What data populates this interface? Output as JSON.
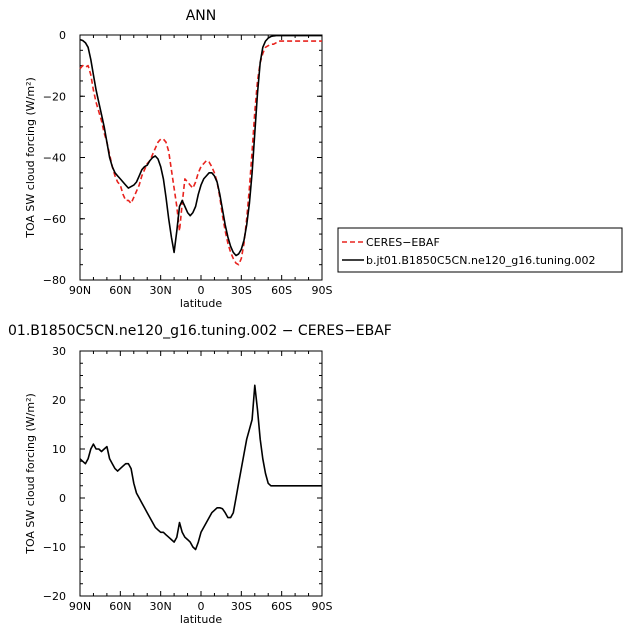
{
  "chart_data": [
    {
      "type": "line",
      "title": "ANN",
      "xlabel": "latitude",
      "ylabel": "TOA SW cloud forcing (W/m²)",
      "xlim": [
        90,
        -90
      ],
      "ylim": [
        -80,
        0
      ],
      "x_ticks": [
        "90N",
        "60N",
        "30N",
        "0",
        "30S",
        "60S",
        "90S"
      ],
      "y_ticks": [
        "0",
        "−20",
        "−40",
        "−60",
        "−80"
      ],
      "legend_position": "right",
      "series": [
        {
          "name": "CERES−EBAF",
          "color": "#e8231e",
          "dash": "dashed",
          "x": [
            90,
            88,
            86,
            84,
            82,
            80,
            78,
            76,
            74,
            72,
            70,
            68,
            66,
            64,
            62,
            60,
            58,
            56,
            54,
            52,
            50,
            48,
            46,
            44,
            42,
            40,
            38,
            36,
            34,
            32,
            30,
            28,
            26,
            24,
            22,
            20,
            18,
            16,
            14,
            12,
            10,
            8,
            6,
            4,
            2,
            0,
            -2,
            -4,
            -6,
            -8,
            -10,
            -12,
            -14,
            -16,
            -18,
            -20,
            -22,
            -24,
            -26,
            -28,
            -30,
            -32,
            -34,
            -36,
            -38,
            -40,
            -42,
            -44,
            -46,
            -48,
            -50,
            -52,
            -54,
            -56,
            -58,
            -60,
            -62,
            -64,
            -66,
            -68,
            -70,
            -72,
            -74,
            -76,
            -78,
            -80,
            -82,
            -84,
            -86,
            -88,
            -90
          ],
          "y": [
            -11,
            -10,
            -10.5,
            -10,
            -13,
            -18,
            -22,
            -25,
            -28,
            -32,
            -35,
            -39,
            -43,
            -46,
            -48,
            -49,
            -52,
            -54,
            -54,
            -55,
            -53,
            -51,
            -49,
            -46,
            -44,
            -42,
            -41,
            -39,
            -37,
            -35,
            -34,
            -34,
            -35,
            -38,
            -44,
            -50,
            -56,
            -64,
            -55,
            -47,
            -48,
            -49,
            -50,
            -48,
            -45,
            -43,
            -42,
            -41,
            -41.5,
            -43,
            -45,
            -48,
            -53,
            -59,
            -64,
            -68,
            -71,
            -73,
            -74.5,
            -75,
            -73,
            -68,
            -60,
            -50,
            -38,
            -25,
            -15,
            -9,
            -6,
            -4,
            -3.5,
            -3,
            -3,
            -2.5,
            -2,
            -2,
            -2,
            -2,
            -2,
            -2,
            -2,
            -2,
            -2,
            -2,
            -2,
            -2,
            -2,
            -2,
            -2,
            -2,
            -2
          ]
        },
        {
          "name": "b.jt01.B1850C5CN.ne120_g16.tuning.002",
          "color": "#000000",
          "dash": "solid",
          "x": [
            90,
            88,
            86,
            84,
            82,
            80,
            78,
            76,
            74,
            72,
            70,
            68,
            66,
            64,
            62,
            60,
            58,
            56,
            54,
            52,
            50,
            48,
            46,
            44,
            42,
            40,
            38,
            36,
            34,
            32,
            30,
            28,
            26,
            24,
            22,
            20,
            18,
            16,
            14,
            12,
            10,
            8,
            6,
            4,
            2,
            0,
            -2,
            -4,
            -6,
            -8,
            -10,
            -12,
            -14,
            -16,
            -18,
            -20,
            -22,
            -24,
            -26,
            -28,
            -30,
            -32,
            -34,
            -36,
            -38,
            -40,
            -42,
            -44,
            -46,
            -48,
            -50,
            -52,
            -54,
            -56,
            -58,
            -60,
            -62,
            -64,
            -66,
            -68,
            -70,
            -72,
            -74,
            -76,
            -78,
            -80,
            -82,
            -84,
            -86,
            -88,
            -90
          ],
          "y": [
            -1.5,
            -1.8,
            -2.5,
            -4,
            -8,
            -13,
            -18,
            -22,
            -26,
            -30,
            -35,
            -40,
            -43,
            -45,
            -46,
            -47,
            -48,
            -49,
            -50,
            -49.5,
            -49,
            -48,
            -46,
            -44,
            -43,
            -42.5,
            -41,
            -40,
            -39.5,
            -40.5,
            -43,
            -47,
            -53,
            -60,
            -66,
            -71,
            -64,
            -56,
            -54,
            -56,
            -58,
            -59,
            -58,
            -56,
            -52,
            -49,
            -47,
            -46,
            -45,
            -45,
            -46,
            -48,
            -52,
            -57,
            -62,
            -66,
            -69,
            -71,
            -72,
            -71.5,
            -70,
            -67,
            -62,
            -55,
            -45,
            -32,
            -19,
            -9,
            -4,
            -2,
            -1,
            -0.5,
            -0.3,
            -0.2,
            -0.2,
            -0.2,
            -0.2,
            -0.2,
            -0.2,
            -0.2,
            -0.2,
            -0.2,
            -0.2,
            -0.2,
            -0.2,
            -0.2,
            -0.2,
            -0.2,
            -0.2,
            -0.2,
            -0.2
          ]
        }
      ]
    },
    {
      "type": "line",
      "title": "01.B1850C5CN.ne120_g16.tuning.002 − CERES−EBAF",
      "xlabel": "latitude",
      "ylabel": "TOA SW cloud forcing (W/m²)",
      "xlim": [
        90,
        -90
      ],
      "ylim": [
        -20,
        30
      ],
      "x_ticks": [
        "90N",
        "60N",
        "30N",
        "0",
        "30S",
        "60S",
        "90S"
      ],
      "y_ticks": [
        "30",
        "20",
        "10",
        "0",
        "−10",
        "−20"
      ],
      "series": [
        {
          "name": "",
          "color": "#000000",
          "dash": "solid",
          "x": [
            90,
            88,
            86,
            84,
            82,
            80,
            78,
            76,
            74,
            72,
            70,
            68,
            66,
            64,
            62,
            60,
            58,
            56,
            54,
            52,
            50,
            48,
            46,
            44,
            42,
            40,
            38,
            36,
            34,
            32,
            30,
            28,
            26,
            24,
            22,
            20,
            18,
            16,
            14,
            12,
            10,
            8,
            6,
            4,
            2,
            0,
            -2,
            -4,
            -6,
            -8,
            -10,
            -12,
            -14,
            -16,
            -18,
            -20,
            -22,
            -24,
            -26,
            -28,
            -30,
            -32,
            -34,
            -36,
            -38,
            -40,
            -42,
            -44,
            -46,
            -48,
            -50,
            -52,
            -54,
            -56,
            -58,
            -60,
            -62,
            -64,
            -66,
            -68,
            -70,
            -72,
            -74,
            -76,
            -78,
            -80,
            -82,
            -84,
            -86,
            -88,
            -90
          ],
          "y": [
            8,
            7.5,
            7,
            8,
            10,
            11,
            10,
            10,
            9.5,
            10,
            10.5,
            8,
            7,
            6,
            5.5,
            6,
            6.5,
            7,
            7,
            6,
            3,
            1,
            0,
            -1,
            -2,
            -3,
            -4,
            -5,
            -6,
            -6.5,
            -7,
            -7,
            -7.5,
            -8,
            -8.5,
            -9,
            -8,
            -5,
            -7,
            -8,
            -8.5,
            -9,
            -10,
            -10.5,
            -9,
            -7,
            -6,
            -5,
            -4,
            -3,
            -2.5,
            -2,
            -2,
            -2.2,
            -3,
            -4,
            -4,
            -3,
            0,
            3,
            6,
            9,
            12,
            14,
            16,
            23,
            18,
            12,
            8,
            5,
            3,
            2.5,
            2.5,
            2.5,
            2.5,
            2.5,
            2.5,
            2.5,
            2.5,
            2.5,
            2.5,
            2.5,
            2.5,
            2.5,
            2.5,
            2.5,
            2.5,
            2.5,
            2.5,
            2.5,
            2.5
          ]
        }
      ]
    }
  ]
}
